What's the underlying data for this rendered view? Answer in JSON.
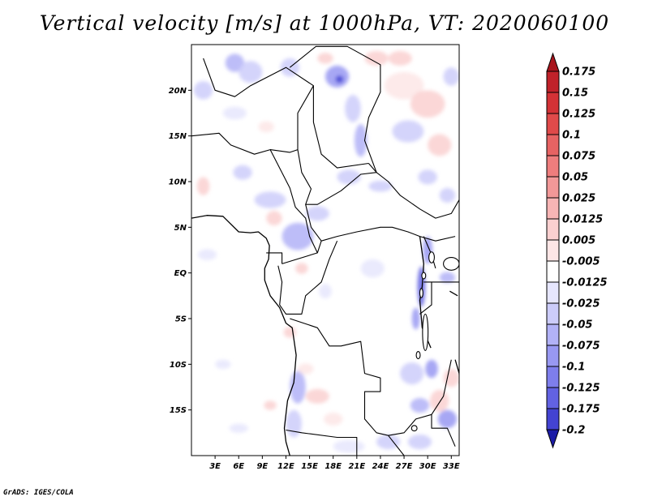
{
  "title": "Vertical velocity [m/s] at 1000hPa, VT: 2020060100",
  "credit": "GrADS: IGES/COLA",
  "map": {
    "lon_range": [
      0,
      34
    ],
    "lat_range": [
      -20,
      25
    ],
    "lat_ticks": [
      {
        "value": 20,
        "label": "20N"
      },
      {
        "value": 15,
        "label": "15N"
      },
      {
        "value": 10,
        "label": "10N"
      },
      {
        "value": 5,
        "label": "5N"
      },
      {
        "value": 0,
        "label": "EQ"
      },
      {
        "value": -5,
        "label": "5S"
      },
      {
        "value": -10,
        "label": "10S"
      },
      {
        "value": -15,
        "label": "15S"
      }
    ],
    "lon_ticks": [
      {
        "value": 3,
        "label": "3E"
      },
      {
        "value": 6,
        "label": "6E"
      },
      {
        "value": 9,
        "label": "9E"
      },
      {
        "value": 12,
        "label": "12E"
      },
      {
        "value": 15,
        "label": "15E"
      },
      {
        "value": 18,
        "label": "18E"
      },
      {
        "value": 21,
        "label": "21E"
      },
      {
        "value": 24,
        "label": "24E"
      },
      {
        "value": 27,
        "label": "27E"
      },
      {
        "value": 30,
        "label": "30E"
      },
      {
        "value": 33,
        "label": "33E"
      }
    ]
  },
  "colorbar": {
    "levels": [
      {
        "label": "0.175",
        "color": "#c0222a"
      },
      {
        "label": "0.15",
        "color": "#d33236"
      },
      {
        "label": "0.125",
        "color": "#e04a4a"
      },
      {
        "label": "0.1",
        "color": "#e76363"
      },
      {
        "label": "0.075",
        "color": "#ee7d7d"
      },
      {
        "label": "0.05",
        "color": "#f29898"
      },
      {
        "label": "0.025",
        "color": "#f7b5b5"
      },
      {
        "label": "0.0125",
        "color": "#fad0d0"
      },
      {
        "label": "0.005",
        "color": "#fde6e6"
      },
      {
        "label": "-0.005",
        "color": "#ffffff"
      },
      {
        "label": "-0.0125",
        "color": "#e6e6fd"
      },
      {
        "label": "-0.025",
        "color": "#ccccfa"
      },
      {
        "label": "-0.05",
        "color": "#b2b2f7"
      },
      {
        "label": "-0.075",
        "color": "#9898f2"
      },
      {
        "label": "-0.1",
        "color": "#7e7eec"
      },
      {
        "label": "-0.125",
        "color": "#6262e2"
      },
      {
        "label": "-0.175",
        "color": "#4343d2"
      },
      {
        "label": "-0.2",
        "color": "#2a2abf"
      }
    ],
    "top_arrow_color": "#a8141c",
    "bottom_arrow_color": "#1c1ca6"
  },
  "patches": [
    {
      "lon": 5.5,
      "lat": 23,
      "rx": 1.2,
      "ry": 1.0,
      "color": "#b2b2f7"
    },
    {
      "lon": 7.5,
      "lat": 22,
      "rx": 1.5,
      "ry": 1.2,
      "color": "#ccccfa"
    },
    {
      "lon": 1.5,
      "lat": 20,
      "rx": 1.2,
      "ry": 1.0,
      "color": "#ccccfa"
    },
    {
      "lon": 12.5,
      "lat": 22.5,
      "rx": 1.2,
      "ry": 1.0,
      "color": "#ccccfa"
    },
    {
      "lon": 17.0,
      "lat": 23.5,
      "rx": 1.0,
      "ry": 0.6,
      "color": "#fad0d0"
    },
    {
      "lon": 18.5,
      "lat": 21.5,
      "rx": 1.5,
      "ry": 1.2,
      "color": "#9898f2"
    },
    {
      "lon": 18.8,
      "lat": 21.2,
      "rx": 0.5,
      "ry": 0.4,
      "color": "#4343d2"
    },
    {
      "lon": 20.5,
      "lat": 18,
      "rx": 1.0,
      "ry": 1.5,
      "color": "#ccccfa"
    },
    {
      "lon": 21.5,
      "lat": 14.5,
      "rx": 0.8,
      "ry": 1.8,
      "color": "#b2b2f7"
    },
    {
      "lon": 23.5,
      "lat": 23.5,
      "rx": 1.5,
      "ry": 0.8,
      "color": "#fad0d0"
    },
    {
      "lon": 26.5,
      "lat": 23.5,
      "rx": 1.5,
      "ry": 0.8,
      "color": "#fad0d0"
    },
    {
      "lon": 27,
      "lat": 20.5,
      "rx": 2.5,
      "ry": 1.5,
      "color": "#fde6e6"
    },
    {
      "lon": 30,
      "lat": 18.5,
      "rx": 2.2,
      "ry": 1.5,
      "color": "#fad0d0"
    },
    {
      "lon": 27.5,
      "lat": 15.5,
      "rx": 2.0,
      "ry": 1.2,
      "color": "#ccccfa"
    },
    {
      "lon": 31.5,
      "lat": 14,
      "rx": 1.5,
      "ry": 1.2,
      "color": "#fad0d0"
    },
    {
      "lon": 33,
      "lat": 21.5,
      "rx": 1.0,
      "ry": 1.0,
      "color": "#ccccfa"
    },
    {
      "lon": 5.5,
      "lat": 17.5,
      "rx": 1.5,
      "ry": 0.7,
      "color": "#e6e6fd"
    },
    {
      "lon": 9.5,
      "lat": 16,
      "rx": 1.0,
      "ry": 0.6,
      "color": "#fde6e6"
    },
    {
      "lon": 6.5,
      "lat": 11,
      "rx": 1.2,
      "ry": 0.8,
      "color": "#ccccfa"
    },
    {
      "lon": 10,
      "lat": 8.0,
      "rx": 2.0,
      "ry": 0.9,
      "color": "#ccccfa"
    },
    {
      "lon": 1.5,
      "lat": 9.5,
      "rx": 0.8,
      "ry": 1.0,
      "color": "#fad0d0"
    },
    {
      "lon": 16,
      "lat": 6.5,
      "rx": 1.5,
      "ry": 0.8,
      "color": "#ccccfa"
    },
    {
      "lon": 13.5,
      "lat": 4.0,
      "rx": 2.0,
      "ry": 1.5,
      "color": "#b2b2f7"
    },
    {
      "lon": 10.5,
      "lat": 6,
      "rx": 1.0,
      "ry": 0.8,
      "color": "#fad0d0"
    },
    {
      "lon": 20,
      "lat": 10.5,
      "rx": 1.5,
      "ry": 0.8,
      "color": "#ccccfa"
    },
    {
      "lon": 24,
      "lat": 9.5,
      "rx": 1.5,
      "ry": 0.6,
      "color": "#ccccfa"
    },
    {
      "lon": 30,
      "lat": 10.5,
      "rx": 1.2,
      "ry": 0.8,
      "color": "#ccccfa"
    },
    {
      "lon": 32.5,
      "lat": 8.5,
      "rx": 1.0,
      "ry": 0.8,
      "color": "#ccccfa"
    },
    {
      "lon": 30,
      "lat": 2.5,
      "rx": 0.6,
      "ry": 1.5,
      "color": "#9898f2"
    },
    {
      "lon": 29.2,
      "lat": -1.5,
      "rx": 0.5,
      "ry": 2.2,
      "color": "#6262e2"
    },
    {
      "lon": 28.5,
      "lat": -5,
      "rx": 0.5,
      "ry": 1.2,
      "color": "#9898f2"
    },
    {
      "lon": 32.5,
      "lat": -0.5,
      "rx": 1.0,
      "ry": 0.6,
      "color": "#b2b2f7"
    },
    {
      "lon": 14,
      "lat": 0.5,
      "rx": 0.8,
      "ry": 0.6,
      "color": "#fad0d0"
    },
    {
      "lon": 17,
      "lat": -2,
      "rx": 0.8,
      "ry": 0.8,
      "color": "#e6e6fd"
    },
    {
      "lon": 12.5,
      "lat": -6.5,
      "rx": 0.8,
      "ry": 0.6,
      "color": "#fad0d0"
    },
    {
      "lon": 23,
      "lat": 0.5,
      "rx": 1.5,
      "ry": 1.0,
      "color": "#e6e6fd"
    },
    {
      "lon": 28,
      "lat": -11,
      "rx": 1.5,
      "ry": 1.2,
      "color": "#ccccfa"
    },
    {
      "lon": 30.5,
      "lat": -10.5,
      "rx": 0.8,
      "ry": 1.0,
      "color": "#9898f2"
    },
    {
      "lon": 31.5,
      "lat": -14,
      "rx": 1.2,
      "ry": 1.2,
      "color": "#fad0d0"
    },
    {
      "lon": 33,
      "lat": -11.5,
      "rx": 1.0,
      "ry": 1.0,
      "color": "#fad0d0"
    },
    {
      "lon": 29,
      "lat": -14.5,
      "rx": 1.2,
      "ry": 0.8,
      "color": "#b2b2f7"
    },
    {
      "lon": 32.5,
      "lat": -16,
      "rx": 1.2,
      "ry": 1.0,
      "color": "#9898f2"
    },
    {
      "lon": 25,
      "lat": -18.5,
      "rx": 1.5,
      "ry": 0.8,
      "color": "#ccccfa"
    },
    {
      "lon": 29,
      "lat": -18.5,
      "rx": 1.5,
      "ry": 0.8,
      "color": "#ccccfa"
    },
    {
      "lon": 13.5,
      "lat": -12.5,
      "rx": 1.0,
      "ry": 1.8,
      "color": "#b2b2f7"
    },
    {
      "lon": 13,
      "lat": -16.5,
      "rx": 1.0,
      "ry": 1.5,
      "color": "#ccccfa"
    },
    {
      "lon": 16,
      "lat": -13.5,
      "rx": 1.5,
      "ry": 0.8,
      "color": "#fad0d0"
    },
    {
      "lon": 18,
      "lat": -16,
      "rx": 1.2,
      "ry": 0.7,
      "color": "#fde6e6"
    },
    {
      "lon": 14.5,
      "lat": -10.5,
      "rx": 1.0,
      "ry": 0.6,
      "color": "#fde6e6"
    },
    {
      "lon": 10,
      "lat": -14.5,
      "rx": 0.8,
      "ry": 0.5,
      "color": "#fad0d0"
    },
    {
      "lon": 20,
      "lat": -19,
      "rx": 2.0,
      "ry": 0.7,
      "color": "#e6e6fd"
    },
    {
      "lon": 2,
      "lat": 2,
      "rx": 1.2,
      "ry": 0.6,
      "color": "#e6e6fd"
    },
    {
      "lon": 4,
      "lat": -10,
      "rx": 1.0,
      "ry": 0.5,
      "color": "#e6e6fd"
    },
    {
      "lon": 6,
      "lat": -17,
      "rx": 1.2,
      "ry": 0.5,
      "color": "#e6e6fd"
    }
  ],
  "boundaries": [
    [
      [
        12.5,
        22.5
      ],
      [
        15.8,
        24.8
      ],
      [
        19.8,
        24.8
      ],
      [
        24,
        22.8
      ],
      [
        24,
        19.8
      ],
      [
        22.5,
        17
      ],
      [
        22,
        14.5
      ],
      [
        23.5,
        11
      ],
      [
        25,
        10
      ],
      [
        26.5,
        8.5
      ],
      [
        29,
        7
      ],
      [
        31,
        6
      ],
      [
        33,
        6.5
      ],
      [
        34,
        8
      ]
    ],
    [
      [
        1.5,
        23.5
      ],
      [
        3,
        20
      ],
      [
        5.5,
        19.3
      ],
      [
        7.5,
        20.5
      ],
      [
        12,
        22.5
      ],
      [
        15.5,
        20.5
      ],
      [
        13.5,
        17.5
      ],
      [
        13.5,
        13.5
      ]
    ],
    [
      [
        0,
        15
      ],
      [
        3.5,
        15.3
      ],
      [
        5,
        14
      ],
      [
        8,
        13
      ],
      [
        10,
        13.5
      ],
      [
        12.5,
        13.2
      ],
      [
        13.5,
        13.5
      ],
      [
        14,
        11
      ],
      [
        15.2,
        9.2
      ],
      [
        14.5,
        7.5
      ],
      [
        16,
        7.5
      ],
      [
        19,
        9
      ],
      [
        21.5,
        10.8
      ],
      [
        23.5,
        11
      ]
    ],
    [
      [
        15.5,
        20.5
      ],
      [
        15.5,
        16.5
      ],
      [
        16.5,
        13
      ],
      [
        18.5,
        11.5
      ],
      [
        22.5,
        12
      ]
    ],
    [
      [
        10,
        13.5
      ],
      [
        12.5,
        9.3
      ],
      [
        13.2,
        7.2
      ],
      [
        14.5,
        6
      ],
      [
        15,
        4
      ],
      [
        16,
        2.2
      ]
    ],
    [
      [
        14.5,
        7.5
      ],
      [
        15.2,
        5
      ],
      [
        16.5,
        3.5
      ],
      [
        18.5,
        4
      ],
      [
        21,
        4.5
      ],
      [
        24,
        5
      ],
      [
        25.5,
        5
      ],
      [
        27.5,
        4.5
      ],
      [
        29,
        4
      ],
      [
        31,
        3.5
      ],
      [
        33.5,
        4
      ]
    ],
    [
      [
        11.5,
        1
      ],
      [
        16,
        2.2
      ],
      [
        16.5,
        3.5
      ]
    ],
    [
      [
        9.5,
        2.2
      ],
      [
        11.5,
        2.2
      ],
      [
        11.5,
        1
      ]
    ],
    [
      [
        11,
        0.8
      ],
      [
        11.5,
        -1
      ],
      [
        11.2,
        -3.5
      ],
      [
        12,
        -4.5
      ],
      [
        14,
        -4.5
      ],
      [
        14.5,
        -2.5
      ],
      [
        16.5,
        -1
      ],
      [
        17.5,
        1.5
      ],
      [
        18.5,
        3.5
      ]
    ],
    [
      [
        12.5,
        -5
      ],
      [
        16,
        -6
      ],
      [
        17.5,
        -8
      ],
      [
        19,
        -8
      ],
      [
        21.5,
        -7.5
      ],
      [
        22,
        -11
      ],
      [
        24,
        -11.5
      ],
      [
        24,
        -13
      ],
      [
        22,
        -13
      ],
      [
        22,
        -16
      ],
      [
        23.5,
        -17.5
      ],
      [
        25,
        -17.8
      ],
      [
        27,
        -17.5
      ],
      [
        28.5,
        -16
      ],
      [
        30.5,
        -15.5
      ],
      [
        32,
        -13.5
      ],
      [
        33,
        -9.5
      ]
    ],
    [
      [
        12,
        -17.2
      ],
      [
        14,
        -17.5
      ],
      [
        18.5,
        -18
      ],
      [
        21,
        -18
      ],
      [
        21,
        -22
      ]
    ],
    [
      [
        25,
        -17.8
      ],
      [
        27,
        -20
      ],
      [
        29,
        -22
      ]
    ],
    [
      [
        30.5,
        -15.5
      ],
      [
        30.5,
        -17
      ],
      [
        32.5,
        -17
      ],
      [
        33.5,
        -19
      ]
    ],
    [
      [
        29.5,
        -1
      ],
      [
        30.5,
        -1
      ],
      [
        31,
        -1
      ],
      [
        32,
        -1
      ],
      [
        33.5,
        -1
      ],
      [
        34,
        -1
      ]
    ],
    [
      [
        30.5,
        -1
      ],
      [
        30.5,
        -3.5
      ],
      [
        29,
        -4.5
      ]
    ],
    [
      [
        29.5,
        4
      ],
      [
        30.5,
        2
      ],
      [
        31,
        0.5
      ]
    ],
    [
      [
        23.5,
        11
      ],
      [
        22.5,
        12
      ]
    ]
  ],
  "coast": [
    [
      [
        0,
        6
      ],
      [
        2,
        6.3
      ],
      [
        4,
        6.2
      ],
      [
        6,
        4.5
      ],
      [
        7.5,
        4.4
      ],
      [
        8.5,
        4.5
      ],
      [
        9.5,
        3.8
      ],
      [
        9.9,
        3
      ],
      [
        9.8,
        1.5
      ],
      [
        9.3,
        0.5
      ],
      [
        9.3,
        -0.8
      ],
      [
        10,
        -2.5
      ],
      [
        11.2,
        -3.8
      ],
      [
        12,
        -5.5
      ],
      [
        12.8,
        -6
      ],
      [
        13.3,
        -9
      ],
      [
        13,
        -12
      ],
      [
        12.2,
        -14
      ],
      [
        11.8,
        -17
      ],
      [
        12,
        -18.5
      ],
      [
        12.5,
        -20
      ]
    ],
    [
      [
        29,
        4
      ],
      [
        29.5,
        1
      ],
      [
        29.3,
        -1.5
      ],
      [
        29,
        -3
      ],
      [
        29.3,
        -6
      ],
      [
        30.4,
        -8.2
      ]
    ],
    [
      [
        32.8,
        -2
      ],
      [
        33.8,
        -2.5
      ]
    ],
    [
      [
        33.5,
        -9.5
      ],
      [
        34,
        -11
      ],
      [
        34.2,
        -13.5
      ],
      [
        34.5,
        -15
      ]
    ]
  ],
  "lakes": [
    {
      "lon": 33,
      "lat": 1.0,
      "rx": 1.0,
      "ry": 0.7
    },
    {
      "lon": 30.5,
      "lat": 1.7,
      "rx": 0.35,
      "ry": 0.6
    },
    {
      "lon": 29.5,
      "lat": -0.3,
      "rx": 0.25,
      "ry": 0.35
    },
    {
      "lon": 29.2,
      "lat": -2.2,
      "rx": 0.2,
      "ry": 0.5
    },
    {
      "lon": 29.7,
      "lat": -6.5,
      "rx": 0.35,
      "ry": 2.0
    },
    {
      "lon": 28.8,
      "lat": -9.0,
      "rx": 0.25,
      "ry": 0.4
    },
    {
      "lon": 34.3,
      "lat": -12,
      "rx": 0.3,
      "ry": 1.8
    },
    {
      "lon": 28.3,
      "lat": -17,
      "rx": 0.35,
      "ry": 0.3
    }
  ]
}
